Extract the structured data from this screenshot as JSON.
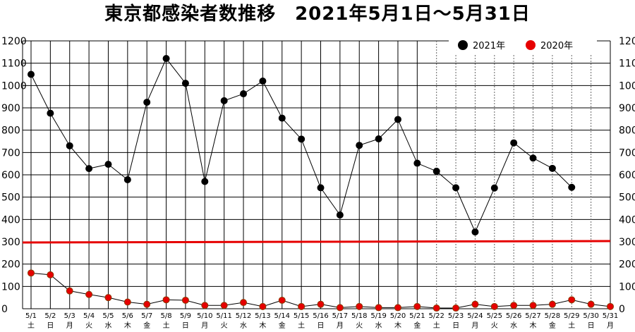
{
  "chart_data": {
    "type": "line",
    "title": "東京都感染者数推移　2021年5月1日～5月31日",
    "ylim": [
      0,
      1200
    ],
    "y_ticks": [
      0,
      100,
      200,
      300,
      400,
      500,
      600,
      700,
      800,
      900,
      1000,
      1100,
      1200
    ],
    "highlight_tick": 300,
    "reference_line": {
      "y": 300,
      "color": "#e60000"
    },
    "grid": true,
    "legend_position": "top-right",
    "categories": [
      "5/1",
      "5/2",
      "5/3",
      "5/4",
      "5/5",
      "5/6",
      "5/7",
      "5/8",
      "5/9",
      "5/10",
      "5/11",
      "5/12",
      "5/13",
      "5/14",
      "5/15",
      "5/16",
      "5/17",
      "5/18",
      "5/19",
      "5/20",
      "5/21",
      "5/22",
      "5/23",
      "5/24",
      "5/25",
      "5/26",
      "5/27",
      "5/28",
      "5/29",
      "5/30",
      "5/31"
    ],
    "weekdays": [
      "土",
      "日",
      "月",
      "火",
      "水",
      "木",
      "金",
      "土",
      "日",
      "月",
      "火",
      "水",
      "木",
      "金",
      "土",
      "日",
      "月",
      "火",
      "水",
      "木",
      "金",
      "土",
      "日",
      "月",
      "火",
      "水",
      "木",
      "金",
      "土",
      "日",
      "月"
    ],
    "series": [
      {
        "name": "2021年",
        "color": "#000000",
        "values": [
          1050,
          876,
          730,
          628,
          647,
          578,
          925,
          1121,
          1010,
          570,
          932,
          963,
          1020,
          854,
          760,
          542,
          420,
          732,
          761,
          848,
          652,
          616,
          542,
          344,
          541,
          743,
          675,
          629,
          544,
          null,
          null
        ]
      },
      {
        "name": "2020年",
        "color": "#e60000",
        "values": [
          160,
          152,
          80,
          64,
          50,
          30,
          20,
          40,
          38,
          15,
          15,
          28,
          10,
          38,
          10,
          20,
          5,
          10,
          5,
          5,
          10,
          3,
          3,
          20,
          10,
          15,
          15,
          20,
          40,
          20,
          10
        ]
      }
    ]
  }
}
